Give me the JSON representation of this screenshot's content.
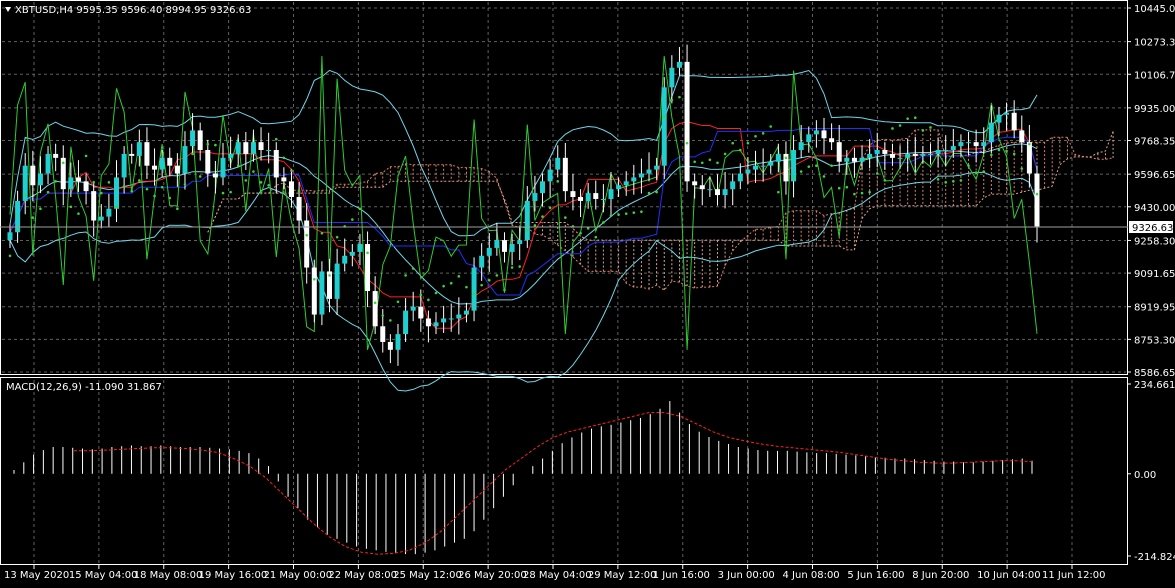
{
  "chart_data": [
    {
      "type": "candlestick",
      "symbol_line": "XBTUSD,H4  9595.35 9596.40 8994.95 9326.63",
      "last_price_label": "9326.63",
      "last_price": 9326.63,
      "colors": {
        "background": "#000000",
        "bull_body": "#20d0d0",
        "bear_body": "#ffffff",
        "grid": "#8a8a8a",
        "tenkan": "#ff2020",
        "kijun": "#2030ff",
        "bollinger": "#6fd6ea",
        "rsi_line": "#2ecc2e",
        "parabolic_sar": "#38d738",
        "cloud_up": "#e08060",
        "cloud_down": "#e0a090"
      },
      "ylim": [
        8586.65,
        10445.0
      ],
      "y_ticks": [
        "10445.00",
        "10273.35",
        "10106.70",
        "9935.00",
        "9768.35",
        "9596.65",
        "9430.00",
        "9258.30",
        "9091.65",
        "8919.95",
        "8753.30",
        "8586.65"
      ],
      "x_ticks": [
        "13 May 2020",
        "15 May 04:00",
        "18 May 08:00",
        "19 May 16:00",
        "21 May 00:00",
        "22 May 08:00",
        "25 May 12:00",
        "26 May 20:00",
        "28 May 04:00",
        "29 May 12:00",
        "1 Jun 16:00",
        "3 Jun 00:00",
        "4 Jun 08:00",
        "5 Jun 16:00",
        "8 Jun 20:00",
        "10 Jun 04:00",
        "11 Jun 12:00"
      ],
      "candles_close": [
        9300,
        9460,
        9640,
        9540,
        9600,
        9700,
        9680,
        9520,
        9580,
        9560,
        9510,
        9360,
        9380,
        9420,
        9580,
        9700,
        9690,
        9760,
        9640,
        9620,
        9680,
        9640,
        9600,
        9740,
        9820,
        9720,
        9600,
        9580,
        9680,
        9700,
        9760,
        9700,
        9760,
        9720,
        9720,
        9580,
        9560,
        9480,
        9360,
        9120,
        8880,
        9100,
        8960,
        9140,
        9180,
        9200,
        9240,
        9000,
        8820,
        8740,
        8700,
        8780,
        8900,
        8920,
        8860,
        8820,
        8840,
        8860,
        8860,
        8880,
        8900,
        9120,
        9180,
        9220,
        9260,
        9200,
        9240,
        9260,
        9460,
        9500,
        9560,
        9620,
        9680,
        9510,
        9480,
        9460,
        9500,
        9470,
        9470,
        9520,
        9540,
        9560,
        9580,
        9600,
        9620,
        9640,
        10040,
        10140,
        10170,
        9560,
        9540,
        9520,
        9520,
        9490,
        9520,
        9560,
        9600,
        9620,
        9640,
        9640,
        9660,
        9700,
        9560,
        9720,
        9760,
        9800,
        9820,
        9780,
        9760,
        9660,
        9680,
        9660,
        9680,
        9700,
        9720,
        9700,
        9680,
        9680,
        9700,
        9690,
        9700,
        9700,
        9720,
        9720,
        9740,
        9760,
        9760,
        9740,
        9760,
        9860,
        9900,
        9910,
        9820,
        9760,
        9600,
        9330
      ],
      "macd_label": "MACD(12,26,9) -11.090 31.867",
      "macd_ylim": [
        -214.824,
        234.661
      ],
      "macd_ticks": [
        "234.661",
        "0.00",
        "-214.824"
      ],
      "macd_hist": [
        10,
        30,
        50,
        62,
        70,
        70,
        68,
        66,
        64,
        66,
        70,
        72,
        74,
        72,
        72,
        74,
        72,
        70,
        70,
        70,
        68,
        66,
        64,
        60,
        54,
        40,
        20,
        -20,
        -60,
        -90,
        -120,
        -140,
        -160,
        -170,
        -180,
        -190,
        -196,
        -200,
        -204,
        -206,
        -210,
        -210,
        -206,
        -200,
        -190,
        -180,
        -170,
        -150,
        -120,
        -90,
        -60,
        -30,
        0,
        20,
        40,
        60,
        80,
        95,
        108,
        118,
        124,
        128,
        134,
        140,
        146,
        156,
        170,
        190,
        160,
        130,
        110,
        96,
        86,
        78,
        70,
        66,
        62,
        60,
        60,
        60,
        58,
        56,
        54,
        54,
        52,
        50,
        48,
        46,
        44,
        42,
        40,
        40,
        38,
        36,
        34,
        32,
        32,
        30,
        30,
        32,
        34,
        36,
        38,
        40,
        34
      ],
      "macd_signal": [
        60,
        60,
        62,
        64,
        66,
        68,
        68,
        66,
        62,
        56,
        40,
        20,
        -10,
        -50,
        -90,
        -130,
        -165,
        -190,
        -205,
        -210,
        -208,
        -200,
        -180,
        -150,
        -110,
        -70,
        -30,
        10,
        40,
        70,
        95,
        110,
        120,
        130,
        140,
        150,
        160,
        160,
        150,
        130,
        110,
        95,
        86,
        78,
        72,
        68,
        64,
        60,
        56,
        50,
        44,
        38,
        34,
        30,
        28,
        28,
        30,
        32,
        34,
        34,
        32
      ]
    }
  ]
}
